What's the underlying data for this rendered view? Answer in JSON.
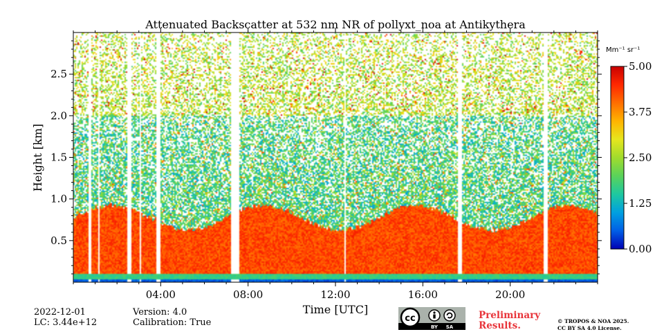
{
  "chart_data": {
    "type": "heatmap",
    "title": "Attenuated Backscatter at 532 nm NR of pollyxt_noa at Antikythera",
    "xlabel": "Time [UTC]",
    "ylabel": "Height [km]",
    "xlim_hours": [
      0,
      24
    ],
    "ylim_km": [
      0,
      3.0
    ],
    "x_ticks": [
      {
        "hour": 4,
        "label": "04:00"
      },
      {
        "hour": 8,
        "label": "08:00"
      },
      {
        "hour": 12,
        "label": "12:00"
      },
      {
        "hour": 16,
        "label": "16:00"
      },
      {
        "hour": 20,
        "label": "20:00"
      }
    ],
    "y_ticks": [
      {
        "value": 0.5,
        "label": "0.5"
      },
      {
        "value": 1.0,
        "label": "1.0"
      },
      {
        "value": 1.5,
        "label": "1.5"
      },
      {
        "value": 2.0,
        "label": "2.0"
      },
      {
        "value": 2.5,
        "label": "2.5"
      }
    ],
    "colorbar": {
      "unit": "Mm⁻¹ sr⁻¹",
      "range": [
        0.0,
        5.0
      ],
      "ticks": [
        {
          "value": 0.0,
          "label": "0.00"
        },
        {
          "value": 1.25,
          "label": "1.25"
        },
        {
          "value": 2.5,
          "label": "2.50"
        },
        {
          "value": 3.75,
          "label": "3.75"
        },
        {
          "value": 5.0,
          "label": "5.00"
        }
      ],
      "colors": [
        "#0000b4",
        "#005fe6",
        "#00a0e0",
        "#1ec8a0",
        "#5ad25a",
        "#a0dc2d",
        "#e6e61e",
        "#ffb400",
        "#ff6e00",
        "#ff2800",
        "#c80000"
      ]
    },
    "data_gaps_hours": [
      [
        0.72,
        0.82
      ],
      [
        1.15,
        1.22
      ],
      [
        2.5,
        2.68
      ],
      [
        3.05,
        3.12
      ],
      [
        3.8,
        4.0
      ],
      [
        7.2,
        7.6
      ],
      [
        12.4,
        12.5
      ],
      [
        17.6,
        17.8
      ],
      [
        21.55,
        21.75
      ]
    ],
    "profile_description_bands": [
      {
        "from_km": 0.0,
        "to_km": 0.04,
        "value": 0.2
      },
      {
        "from_km": 0.04,
        "to_km": 0.1,
        "value": 1.6
      },
      {
        "from_km": 0.1,
        "to_km": 0.9,
        "value": 4.4
      },
      {
        "from_km": 0.9,
        "to_km": 2.0,
        "value": 2.0
      },
      {
        "from_km": 2.0,
        "to_km": 3.0,
        "value": 2.8
      }
    ]
  },
  "info": {
    "date": "2022-12-01",
    "lc": "LC: 3.44e+12",
    "version": "Version: 4.0",
    "calibration": "Calibration: True",
    "preliminary_line1": "Preliminary",
    "preliminary_line2": "Results.",
    "copyright_line1": "© TROPOS & NOA 2025.",
    "copyright_line2": "CC BY SA 4.0 License.",
    "license_badge": {
      "cc": "cc",
      "by": "BY",
      "sa": "SA"
    }
  }
}
